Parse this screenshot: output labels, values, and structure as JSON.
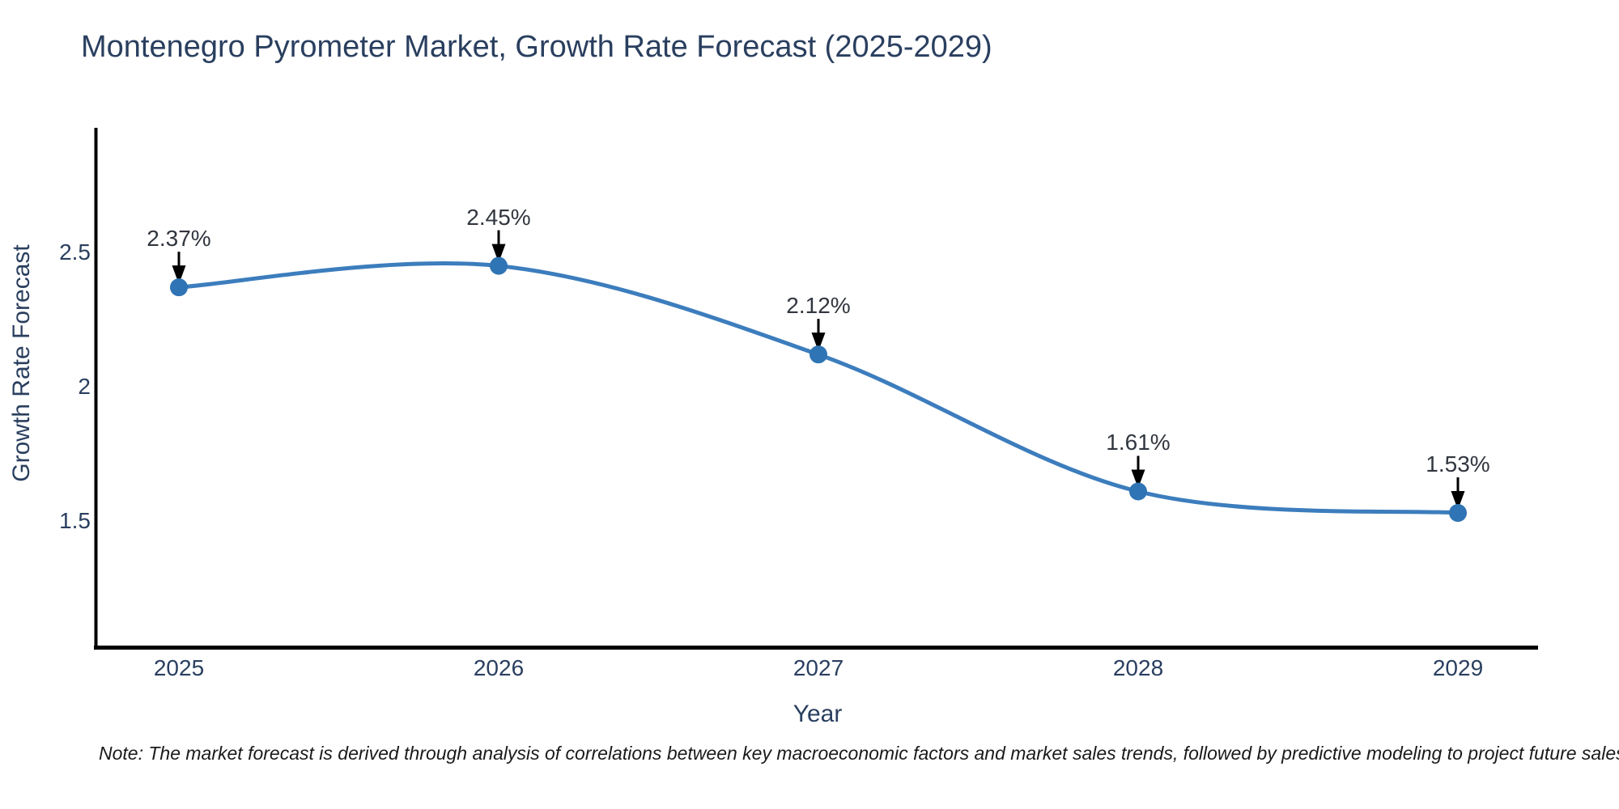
{
  "title": "Montenegro Pyrometer Market, Growth Rate Forecast (2025-2029)",
  "note": "Note: The market forecast is derived through analysis of correlations between key macroeconomic factors and market sales trends, followed by predictive modeling to project future sales",
  "chart_data": {
    "type": "line",
    "title": "Montenegro Pyrometer Market, Growth Rate Forecast (2025-2029)",
    "xlabel": "Year",
    "ylabel": "Growth Rate Forecast",
    "x": [
      2025,
      2026,
      2027,
      2028,
      2029
    ],
    "xtick_labels": [
      "2025",
      "2026",
      "2027",
      "2028",
      "2029"
    ],
    "series": [
      {
        "name": "Growth Rate Forecast",
        "values": [
          2.37,
          2.45,
          2.12,
          1.61,
          1.53
        ]
      }
    ],
    "point_labels": [
      "2.37%",
      "2.45%",
      "2.12%",
      "1.61%",
      "1.53%"
    ],
    "yticks": [
      2.5,
      2,
      1.5
    ],
    "ytick_labels": [
      "2.5",
      "2",
      "1.5"
    ],
    "ylim": [
      1.03,
      2.96
    ],
    "xlim": [
      2024.73,
      2029.27
    ],
    "grid": false,
    "line_shape": "spline",
    "legend": "none",
    "annotations": "value labels with downward arrows above each point",
    "colors": {
      "line": "#3c7dbd",
      "marker": "#2f74b4",
      "axis_text": "#2a3f5f",
      "annotation_text": "#31363f",
      "arrow": "#000000",
      "spine": "#000000",
      "background": "#ffffff"
    }
  }
}
